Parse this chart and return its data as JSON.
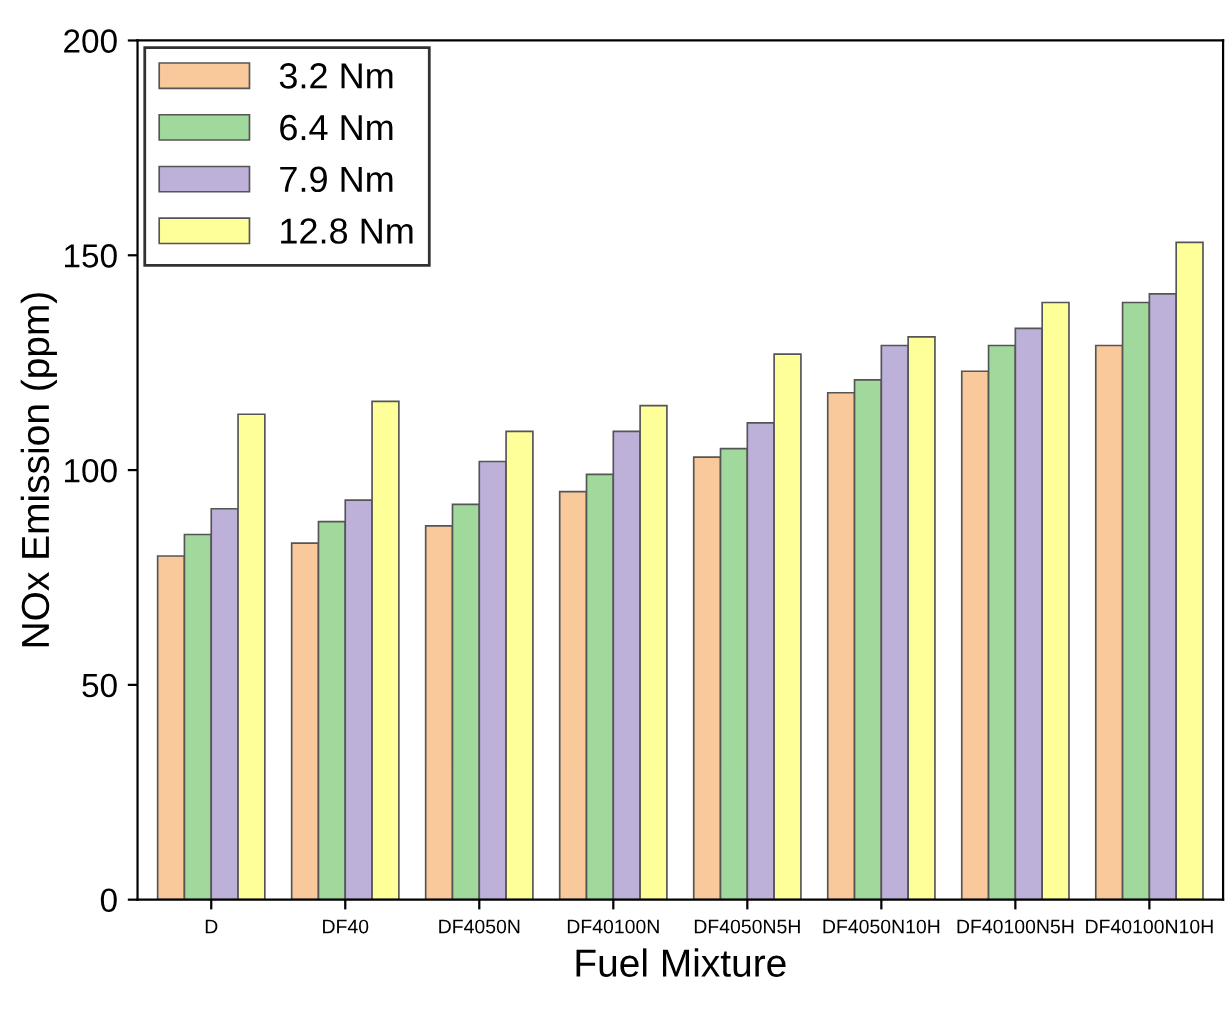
{
  "chart_data": {
    "type": "bar",
    "xlabel": "Fuel Mixture",
    "ylabel": "NOx Emission (ppm)",
    "categories": [
      "D",
      "DF40",
      "DF4050N",
      "DF40100N",
      "DF4050N5H",
      "DF4050N10H",
      "DF40100N5H",
      "DF40100N10H"
    ],
    "series": [
      {
        "name": "3.2 Nm",
        "color": "#f9c89b",
        "values": [
          80,
          83,
          87,
          95,
          103,
          118,
          123,
          129
        ]
      },
      {
        "name": "6.4 Nm",
        "color": "#a0d99b",
        "values": [
          85,
          88,
          92,
          99,
          105,
          121,
          129,
          139
        ]
      },
      {
        "name": "7.9 Nm",
        "color": "#bdb0d9",
        "values": [
          91,
          93,
          102,
          109,
          111,
          129,
          133,
          141
        ]
      },
      {
        "name": "12.8 Nm",
        "color": "#ffff99",
        "values": [
          113,
          116,
          109,
          115,
          127,
          131,
          139,
          153
        ]
      }
    ],
    "ylim": [
      0,
      200
    ],
    "yticks": [
      0,
      50,
      100,
      150,
      200
    ],
    "grid": false,
    "legend": "top left"
  }
}
